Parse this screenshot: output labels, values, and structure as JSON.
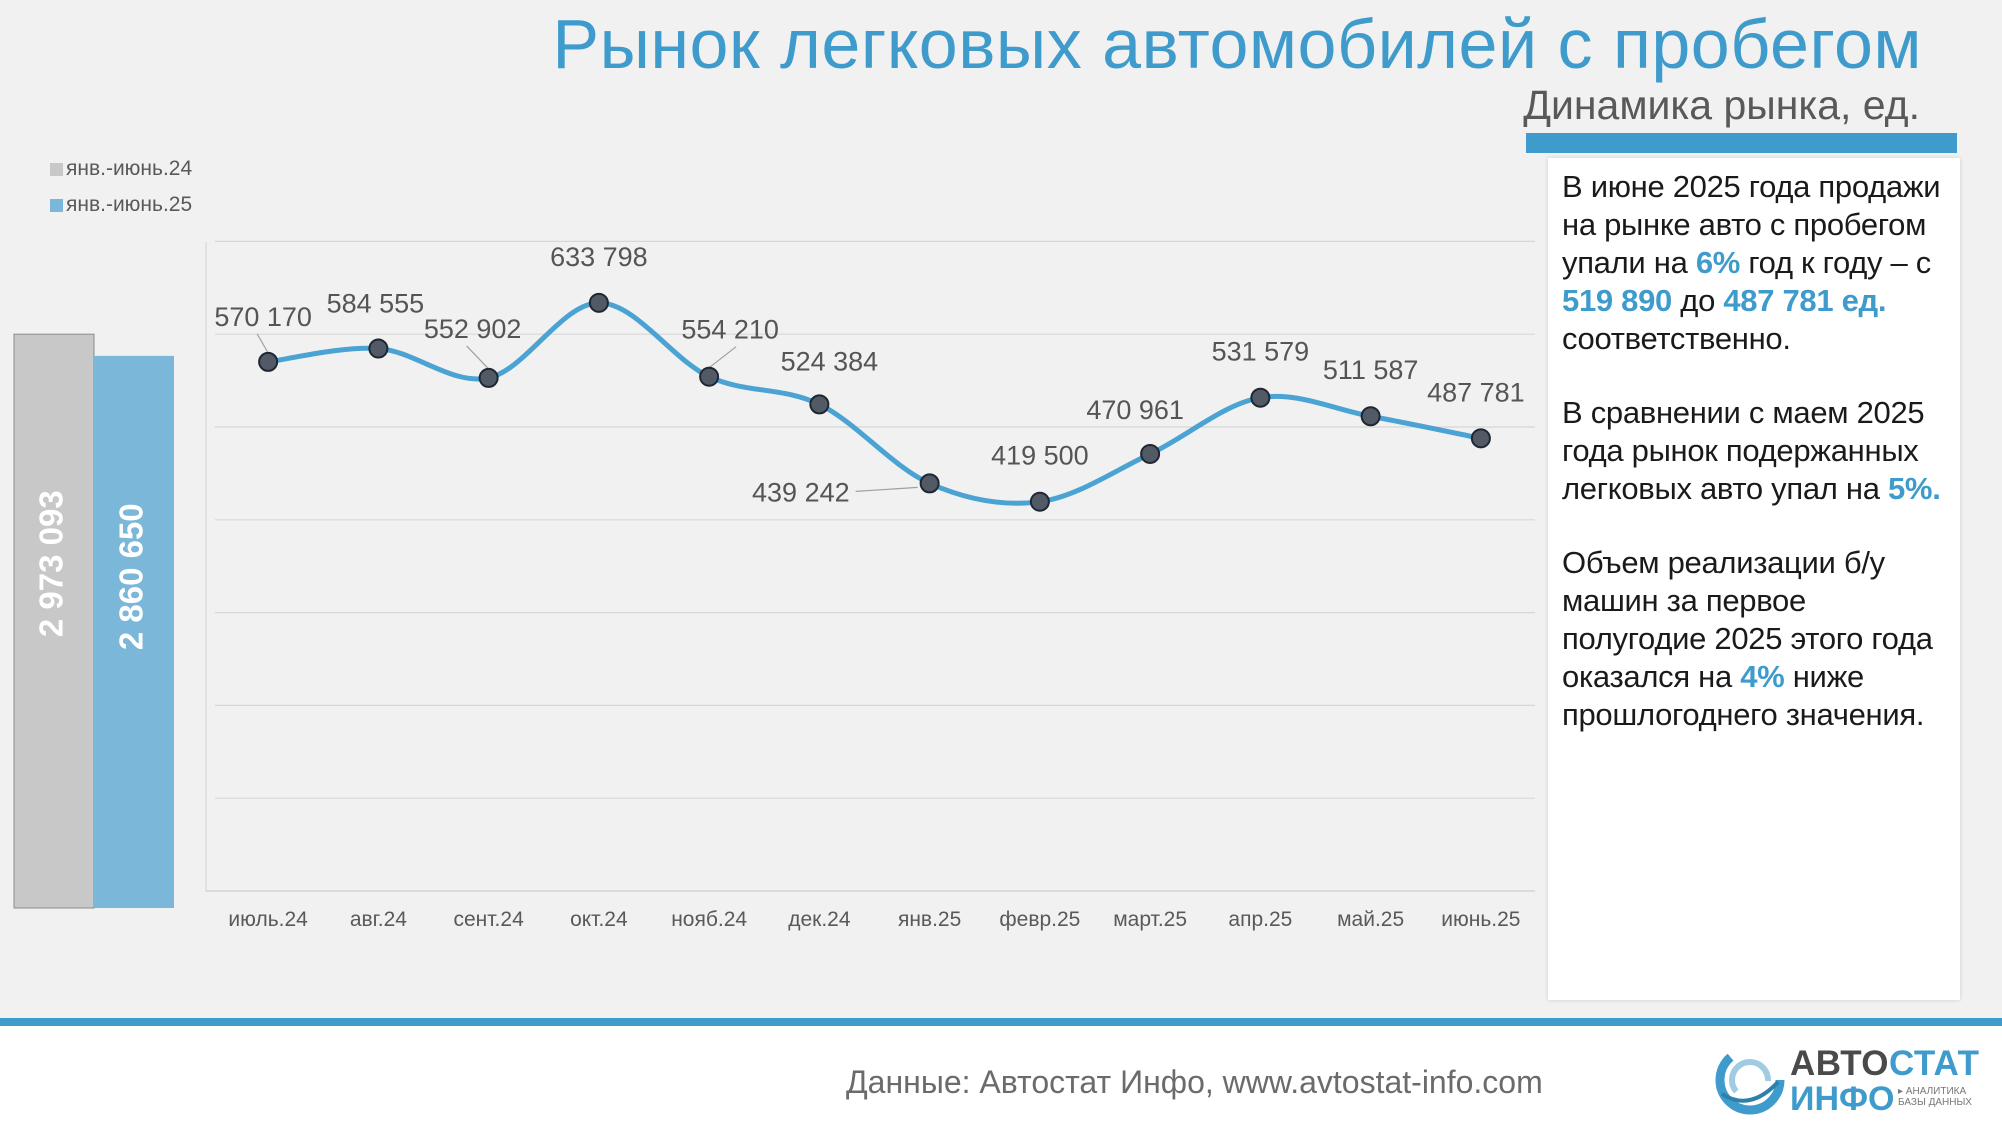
{
  "header": {
    "title": "Рынок легковых автомобилей с пробегом",
    "subtitle": "Динамика рынка, ед."
  },
  "colors": {
    "accent": "#3e9bcc",
    "line": "#4aa3d3",
    "bar_2024": "#c8c8c8",
    "bar_2025": "#7bb7d9",
    "marker": "#525a66"
  },
  "chart_data": [
    {
      "type": "bar",
      "categories": [
        "янв.-июнь.24",
        "янв.-июнь.25"
      ],
      "values": [
        2973093,
        2860650
      ],
      "value_labels": [
        "2 973 093",
        "2 860 650"
      ],
      "legend": [
        "янв.-июнь.24",
        "янв.-июнь.25"
      ],
      "legend_position": "top-left",
      "ylim": [
        0,
        3300000
      ]
    },
    {
      "type": "line",
      "categories": [
        "июль.24",
        "авг.24",
        "сент.24",
        "окт.24",
        "нояб.24",
        "дек.24",
        "янв.25",
        "февр.25",
        "март.25",
        "апр.25",
        "май.25",
        "июнь.25"
      ],
      "values": [
        570170,
        584555,
        552902,
        633798,
        554210,
        524384,
        439242,
        419500,
        470961,
        531579,
        511587,
        487781
      ],
      "value_labels": [
        "570 170",
        "584 555",
        "552 902",
        "633 798",
        "554 210",
        "524 384",
        "439 242",
        "419 500",
        "470 961",
        "531 579",
        "511 587",
        "487 781"
      ],
      "grid": true,
      "ylim": [
        0,
        700000
      ],
      "ytick_step": 100000
    }
  ],
  "info": {
    "p1": {
      "a": "В июне 2025 года продажи на рынке авто с пробегом упали на ",
      "h1": "6%",
      "b": " год к году – с ",
      "h2": "519 890",
      "c": " до ",
      "h3": "487 781 ед.",
      "d": " соответственно."
    },
    "p2": {
      "a": "В сравнении с маем 2025 года рынок подержанных легковых авто упал на ",
      "h1": "5%."
    },
    "p3": {
      "a": "Объем реализации б/у машин за первое полугодие 2025 этого года оказался на ",
      "h1": "4%",
      "b": " ниже прошлогоднего значения."
    }
  },
  "footer": {
    "source": "Данные: Автостат Инфо, www.avtostat-info.com",
    "logo_word_1a": "АВТО",
    "logo_word_1b": "СТАТ",
    "logo_word_2": "ИНФО",
    "logo_tag_1": "▸ АНАЛИТИКА",
    "logo_tag_2": "БАЗЫ ДАННЫХ"
  }
}
